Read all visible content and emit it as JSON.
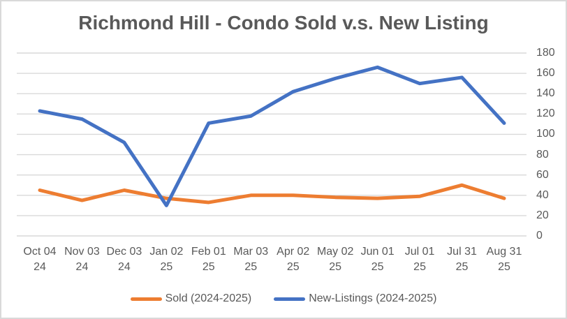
{
  "chart_data": {
    "type": "line",
    "title": "Richmond Hill - Condo Sold v.s. New Listing",
    "categories": [
      "Oct 04 24",
      "Nov 03 24",
      "Dec 03 24",
      "Jan 02 25",
      "Feb 01 25",
      "Mar 03 25",
      "Apr 02 25",
      "May 02 25",
      "Jun 01 25",
      "Jul 01 25",
      "Jul 31 25",
      "Aug 31 25"
    ],
    "categories_wrapped": [
      [
        "Oct 04",
        "24"
      ],
      [
        "Nov 03",
        "24"
      ],
      [
        "Dec 03",
        "24"
      ],
      [
        "Jan 02",
        "25"
      ],
      [
        "Feb 01",
        "25"
      ],
      [
        "Mar 03",
        "25"
      ],
      [
        "Apr 02",
        "25"
      ],
      [
        "May 02",
        "25"
      ],
      [
        "Jun 01",
        "25"
      ],
      [
        "Jul 01",
        "25"
      ],
      [
        "Jul 31",
        "25"
      ],
      [
        "Aug 31",
        "25"
      ]
    ],
    "series": [
      {
        "name": "Sold (2024-2025)",
        "color": "#ED7D31",
        "values": [
          45,
          35,
          45,
          37,
          33,
          40,
          40,
          38,
          37,
          39,
          50,
          37
        ]
      },
      {
        "name": "New-Listings (2024-2025)",
        "color": "#4472C4",
        "values": [
          123,
          115,
          92,
          30,
          111,
          118,
          142,
          155,
          166,
          150,
          156,
          111
        ]
      }
    ],
    "xlabel": "",
    "ylabel": "",
    "ylim": [
      0,
      180
    ],
    "y_ticks": [
      0,
      20,
      40,
      60,
      80,
      100,
      120,
      140,
      160,
      180
    ],
    "y_axis_side": "right",
    "grid": true,
    "gridline_color": "#D9D9D9",
    "text_color": "#595959",
    "legend_position": "bottom"
  }
}
